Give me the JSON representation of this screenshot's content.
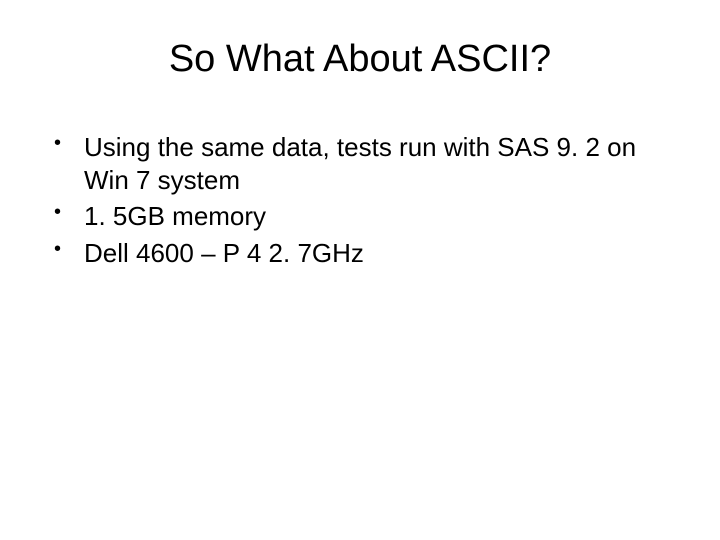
{
  "slide": {
    "title": "So What About ASCII?",
    "bullets": [
      "Using the same data, tests run with SAS 9. 2 on Win 7 system",
      "1. 5GB memory",
      "Dell 4600 – P 4 2. 7GHz"
    ],
    "style": {
      "background_color": "#ffffff",
      "text_color": "#000000",
      "title_fontsize": 38,
      "bullet_fontsize": 26,
      "font_family": "Arial"
    }
  }
}
